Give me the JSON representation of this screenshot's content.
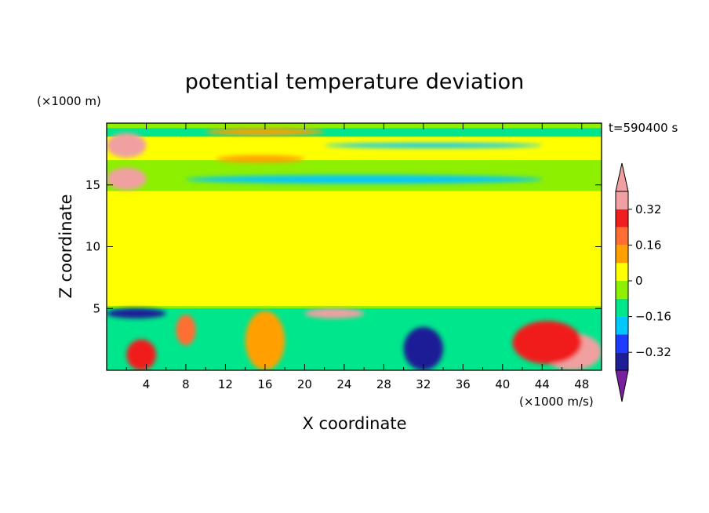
{
  "chart_data": {
    "type": "heatmap",
    "title": "potential temperature deviation",
    "xlabel": "X coordinate",
    "ylabel": "Z coordinate",
    "x_unit": "(×1000 m/s)",
    "y_unit": "(×1000 m)",
    "time_label": "t=590400 s",
    "xlim": [
      0,
      50
    ],
    "ylim": [
      0,
      20
    ],
    "x_ticks": [
      4,
      8,
      12,
      16,
      20,
      24,
      28,
      32,
      36,
      40,
      44,
      48
    ],
    "x_tick_labels": [
      "4",
      "8",
      "12",
      "16",
      "20",
      "24",
      "28",
      "32",
      "36",
      "40",
      "44",
      "48"
    ],
    "y_ticks": [
      5,
      10,
      15
    ],
    "y_tick_labels": [
      "5",
      "10",
      "15"
    ],
    "colorbar": {
      "levels": [
        -0.4,
        -0.32,
        -0.24,
        -0.16,
        -0.08,
        0,
        0.08,
        0.16,
        0.24,
        0.32,
        0.4
      ],
      "tick_values": [
        -0.32,
        -0.16,
        0,
        0.16,
        0.32
      ],
      "tick_labels": [
        "−0.32",
        "−0.16",
        "0",
        "0.16",
        "0.32"
      ],
      "colors": [
        "#1e1e96",
        "#1e3cff",
        "#00c8ff",
        "#00e68c",
        "#8cf000",
        "#ffff00",
        "#ffa000",
        "#ff6e32",
        "#f01e1e",
        "#f0a0a0"
      ],
      "under_color": "#7820a0",
      "over_color": "#f0a0a0"
    },
    "field": {
      "bands": [
        {
          "z": [
            18.9,
            19.6
          ],
          "value": -0.1
        },
        {
          "z": [
            17.0,
            18.9
          ],
          "value": 0.05
        },
        {
          "z": [
            14.5,
            17.0
          ],
          "value": -0.02
        },
        {
          "z": [
            5.2,
            14.5
          ],
          "value": 0.03
        },
        {
          "z": [
            0,
            5.0
          ],
          "value": -0.12
        }
      ],
      "features": [
        {
          "x": [
            0,
            4
          ],
          "z": [
            17.2,
            19.2
          ],
          "value": 0.44
        },
        {
          "x": [
            0,
            4
          ],
          "z": [
            14.6,
            16.4
          ],
          "value": 0.44
        },
        {
          "x": [
            8,
            44
          ],
          "z": [
            15.1,
            15.8
          ],
          "value": -0.2
        },
        {
          "x": [
            22,
            44
          ],
          "z": [
            18.0,
            18.4
          ],
          "value": -0.22
        },
        {
          "x": [
            10,
            22
          ],
          "z": [
            19.0,
            19.6
          ],
          "value": 0.14
        },
        {
          "x": [
            11,
            20
          ],
          "z": [
            16.8,
            17.4
          ],
          "value": 0.15
        },
        {
          "x": [
            14,
            18
          ],
          "z": [
            0,
            4.8
          ],
          "value": 0.14
        },
        {
          "x": [
            20,
            26
          ],
          "z": [
            4.2,
            5.0
          ],
          "value": 0.44
        },
        {
          "x": [
            44,
            50
          ],
          "z": [
            0,
            3.0
          ],
          "value": 0.44
        },
        {
          "x": [
            41,
            48
          ],
          "z": [
            0.5,
            4.0
          ],
          "value": 0.26
        },
        {
          "x": [
            30,
            34
          ],
          "z": [
            0,
            3.5
          ],
          "value": -0.4
        },
        {
          "x": [
            0,
            6
          ],
          "z": [
            4.2,
            5.0
          ],
          "value": -0.4
        },
        {
          "x": [
            2,
            5
          ],
          "z": [
            0,
            2.5
          ],
          "value": 0.3
        },
        {
          "x": [
            7,
            9
          ],
          "z": [
            2.0,
            4.5
          ],
          "value": 0.2
        }
      ]
    }
  }
}
